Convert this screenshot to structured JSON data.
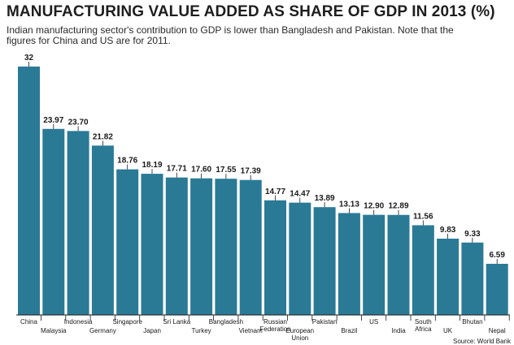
{
  "chart_data": {
    "type": "bar",
    "title": "MANUFACTURING VALUE ADDED AS SHARE OF GDP IN 2013 (%)",
    "subtitle": "Indian manufacturing sector's contribution to GDP is lower than Bangladesh and Pakistan. Note that the figures for China and US are for 2011.",
    "categories": [
      "China",
      "Malaysia",
      "Indonesia",
      "Germany",
      "Singapore",
      "Japan",
      "Sri Lanka",
      "Turkey",
      "Bangladesh",
      "Vietnam",
      "Russian Federation",
      "European Union",
      "Pakistan",
      "Brazil",
      "US",
      "India",
      "South Africa",
      "UK",
      "Bhutan",
      "Nepal"
    ],
    "values": [
      32,
      23.97,
      23.7,
      21.82,
      18.76,
      18.19,
      17.71,
      17.6,
      17.55,
      17.39,
      14.77,
      14.47,
      13.89,
      13.13,
      12.9,
      12.89,
      11.56,
      9.83,
      9.33,
      6.59
    ],
    "value_labels": [
      "32",
      "23.97",
      "23.70",
      "21.82",
      "18.76",
      "18.19",
      "17.71",
      "17.60",
      "17.55",
      "17.39",
      "14.77",
      "14.47",
      "13.89",
      "13.13",
      "12.90",
      "12.89",
      "11.56",
      "9.83",
      "9.33",
      "6.59"
    ],
    "category_labels": [
      [
        "China"
      ],
      [
        "Malaysia"
      ],
      [
        "Indonesia"
      ],
      [
        "Germany"
      ],
      [
        "Singapore"
      ],
      [
        "Japan"
      ],
      [
        "Sri Lanka"
      ],
      [
        "Turkey"
      ],
      [
        "Bangladesh"
      ],
      [
        "Vietnam"
      ],
      [
        "Russian",
        "Federation"
      ],
      [
        "European",
        "Union"
      ],
      [
        "Pakistan"
      ],
      [
        "Brazil"
      ],
      [
        "US"
      ],
      [
        "India"
      ],
      [
        "South",
        "Africa"
      ],
      [
        "UK"
      ],
      [
        "Bhutan"
      ],
      [
        "Nepal"
      ]
    ],
    "ylim": [
      0,
      32
    ],
    "xlabel": "",
    "ylabel": "",
    "grid": false,
    "bar_color": "#2a7a96",
    "source": "Source: World Bank"
  }
}
